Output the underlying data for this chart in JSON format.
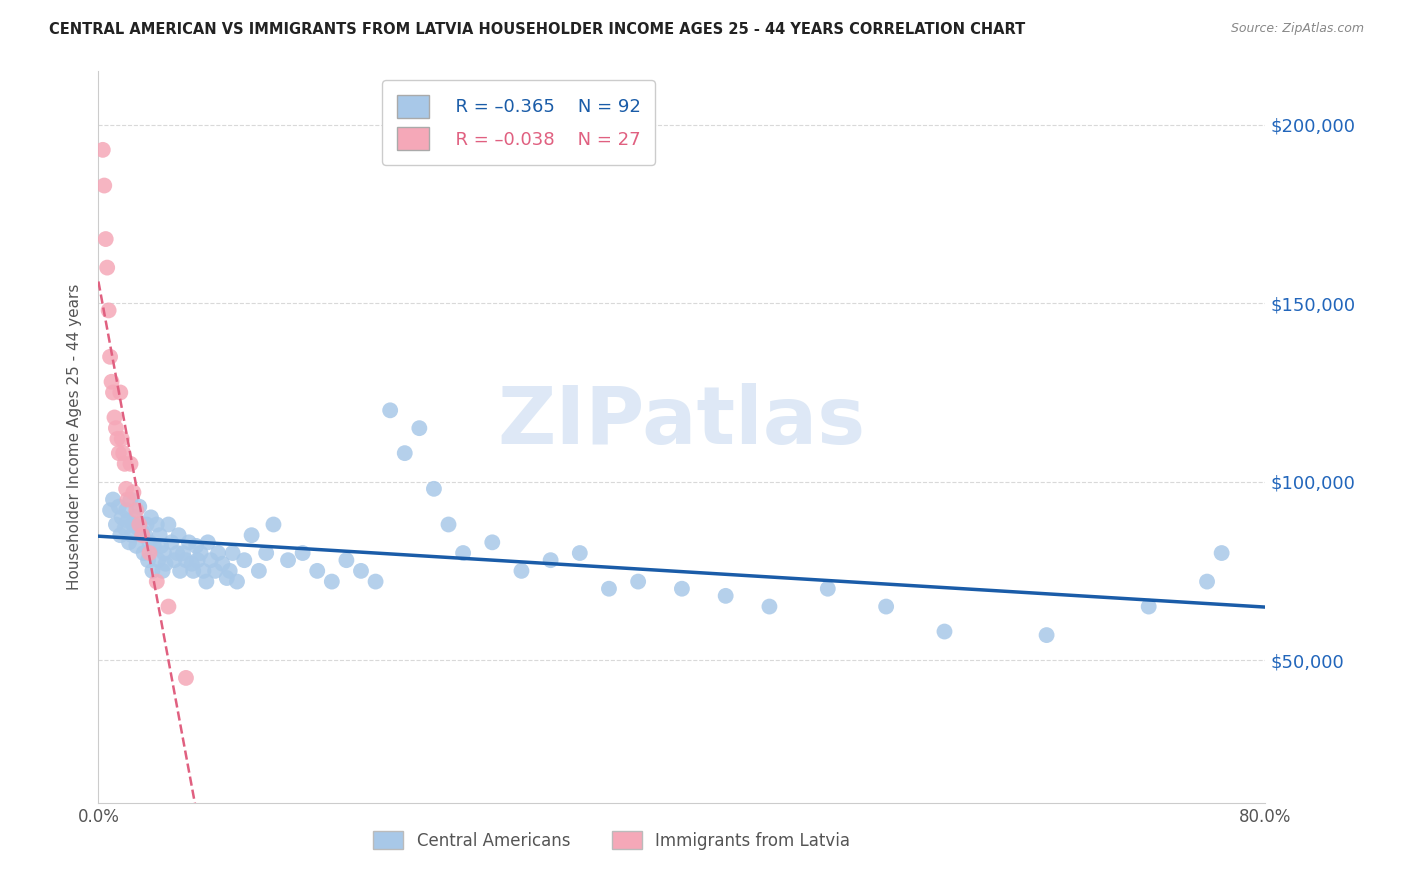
{
  "title": "CENTRAL AMERICAN VS IMMIGRANTS FROM LATVIA HOUSEHOLDER INCOME AGES 25 - 44 YEARS CORRELATION CHART",
  "source": "Source: ZipAtlas.com",
  "ylabel": "Householder Income Ages 25 - 44 years",
  "xmin": 0.0,
  "xmax": 0.8,
  "ymin": 10000,
  "ymax": 215000,
  "yticks": [
    50000,
    100000,
    150000,
    200000
  ],
  "ytick_labels": [
    "$50,000",
    "$100,000",
    "$150,000",
    "$200,000"
  ],
  "series1_label": "Central Americans",
  "series1_color": "#a8c8e8",
  "series1_edge_color": "#a8c8e8",
  "series1_line_color": "#1a5ca8",
  "series2_label": "Immigrants from Latvia",
  "series2_color": "#f5a8b8",
  "series2_edge_color": "#f5a8b8",
  "series2_line_color": "#e06080",
  "background_color": "#ffffff",
  "grid_color": "#d0d0d0",
  "title_color": "#222222",
  "axis_label_color": "#555555",
  "right_tick_color": "#2266bb",
  "watermark": "ZIPatlas",
  "watermark_color": "#c8daf0",
  "blue_scatter_x": [
    0.008,
    0.01,
    0.012,
    0.014,
    0.015,
    0.016,
    0.018,
    0.019,
    0.02,
    0.021,
    0.022,
    0.023,
    0.024,
    0.025,
    0.026,
    0.027,
    0.028,
    0.03,
    0.031,
    0.032,
    0.033,
    0.034,
    0.035,
    0.036,
    0.037,
    0.038,
    0.04,
    0.041,
    0.042,
    0.043,
    0.044,
    0.045,
    0.046,
    0.048,
    0.05,
    0.052,
    0.054,
    0.055,
    0.056,
    0.058,
    0.06,
    0.062,
    0.064,
    0.065,
    0.067,
    0.068,
    0.07,
    0.072,
    0.074,
    0.075,
    0.077,
    0.08,
    0.082,
    0.085,
    0.088,
    0.09,
    0.092,
    0.095,
    0.1,
    0.105,
    0.11,
    0.115,
    0.12,
    0.13,
    0.14,
    0.15,
    0.16,
    0.17,
    0.18,
    0.19,
    0.2,
    0.21,
    0.22,
    0.23,
    0.24,
    0.25,
    0.27,
    0.29,
    0.31,
    0.33,
    0.35,
    0.37,
    0.4,
    0.43,
    0.46,
    0.5,
    0.54,
    0.58,
    0.65,
    0.72,
    0.76,
    0.77
  ],
  "blue_scatter_y": [
    92000,
    95000,
    88000,
    93000,
    85000,
    90000,
    87000,
    92000,
    89000,
    83000,
    95000,
    85000,
    88000,
    90000,
    82000,
    87000,
    93000,
    86000,
    80000,
    85000,
    88000,
    78000,
    83000,
    90000,
    75000,
    82000,
    88000,
    78000,
    85000,
    82000,
    75000,
    80000,
    77000,
    88000,
    83000,
    78000,
    80000,
    85000,
    75000,
    80000,
    78000,
    83000,
    77000,
    75000,
    82000,
    78000,
    80000,
    75000,
    72000,
    83000,
    78000,
    75000,
    80000,
    77000,
    73000,
    75000,
    80000,
    72000,
    78000,
    85000,
    75000,
    80000,
    88000,
    78000,
    80000,
    75000,
    72000,
    78000,
    75000,
    72000,
    120000,
    108000,
    115000,
    98000,
    88000,
    80000,
    83000,
    75000,
    78000,
    80000,
    70000,
    72000,
    70000,
    68000,
    65000,
    70000,
    65000,
    58000,
    57000,
    65000,
    72000,
    80000
  ],
  "pink_scatter_x": [
    0.003,
    0.004,
    0.005,
    0.006,
    0.007,
    0.008,
    0.009,
    0.01,
    0.011,
    0.012,
    0.013,
    0.014,
    0.015,
    0.016,
    0.017,
    0.018,
    0.019,
    0.02,
    0.022,
    0.024,
    0.026,
    0.028,
    0.03,
    0.035,
    0.04,
    0.048,
    0.06
  ],
  "pink_scatter_y": [
    193000,
    183000,
    168000,
    160000,
    148000,
    135000,
    128000,
    125000,
    118000,
    115000,
    112000,
    108000,
    125000,
    112000,
    108000,
    105000,
    98000,
    95000,
    105000,
    97000,
    92000,
    88000,
    85000,
    80000,
    72000,
    65000,
    45000
  ]
}
